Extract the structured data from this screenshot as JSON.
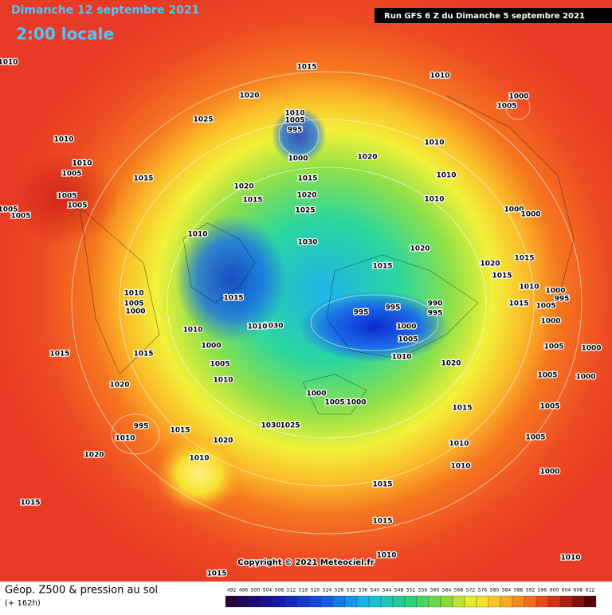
{
  "header": {
    "valid_date": "Dimanche 12 septembre 2021",
    "local_time": "2:00 locale",
    "run": "Run GFS 6 Z du Dimanche 5 septembre 2021"
  },
  "map": {
    "pressure_labels": [
      "1010",
      "1015",
      "1010",
      "1000",
      "1005",
      "1020",
      "1010",
      "1005",
      "995",
      "1025",
      "1010",
      "1010",
      "1020",
      "1000",
      "1010",
      "1005",
      "1015",
      "1015",
      "1010",
      "1020",
      "1020",
      "1005",
      "1005",
      "1015",
      "1010",
      "1005",
      "1005",
      "1025",
      "1000",
      "1000",
      "1010",
      "1030",
      "1020",
      "1015",
      "1020",
      "1015",
      "1015",
      "1010",
      "1010",
      "1005",
      "1000",
      "1015",
      "995",
      "995",
      "990",
      "995",
      "1000",
      "995",
      "1005",
      "1015",
      "1000",
      "1030",
      "1010",
      "1010",
      "1000",
      "1005",
      "1000",
      "1015",
      "1015",
      "1005",
      "1000",
      "1010",
      "1020",
      "1005",
      "1005",
      "1000",
      "1010",
      "1020",
      "1000",
      "1005",
      "1000",
      "1015",
      "1005",
      "995",
      "1015",
      "1030",
      "1025",
      "1010",
      "1020",
      "1005",
      "1010",
      "1020",
      "1010",
      "1010",
      "1000",
      "1015",
      "1015",
      "1015",
      "1010",
      "1010",
      "1015"
    ],
    "copyright": "Copyright © 2021 Meteociel.fr"
  },
  "footer": {
    "title": "Géop. Z500 & pression au sol",
    "lead": "(+ 162h)",
    "scale": [
      492,
      496,
      500,
      504,
      508,
      512,
      516,
      520,
      524,
      528,
      532,
      536,
      540,
      544,
      548,
      552,
      556,
      560,
      564,
      568,
      572,
      576,
      580,
      584,
      588,
      592,
      596,
      600,
      604,
      608,
      612
    ]
  }
}
